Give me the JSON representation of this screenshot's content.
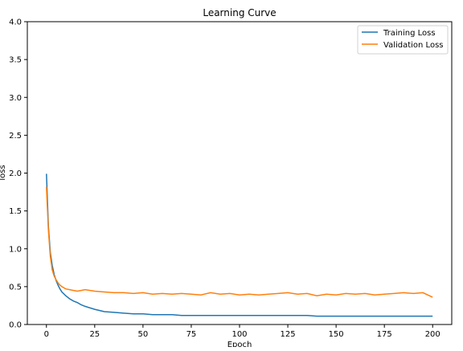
{
  "chart_data": {
    "type": "line",
    "title": "Learning Curve",
    "xlabel": "Epoch",
    "ylabel": "loss",
    "xlim": [
      0,
      200
    ],
    "ylim": [
      0.0,
      4.0
    ],
    "xticks": [
      0,
      25,
      50,
      75,
      100,
      125,
      150,
      175,
      200
    ],
    "yticks": [
      0.0,
      0.5,
      1.0,
      1.5,
      2.0,
      2.5,
      3.0,
      3.5,
      4.0
    ],
    "grid": false,
    "legend_position": "top-right",
    "x": [
      0,
      1,
      2,
      3,
      4,
      5,
      6,
      7,
      8,
      10,
      12,
      14,
      16,
      18,
      20,
      25,
      30,
      35,
      40,
      45,
      50,
      55,
      60,
      65,
      70,
      75,
      80,
      85,
      90,
      95,
      100,
      105,
      110,
      115,
      120,
      125,
      130,
      135,
      140,
      145,
      150,
      155,
      160,
      165,
      170,
      175,
      180,
      185,
      190,
      195,
      200
    ],
    "series": [
      {
        "name": "Training Loss",
        "color": "#1f77b4",
        "values": [
          1.99,
          1.3,
          0.95,
          0.78,
          0.66,
          0.58,
          0.52,
          0.47,
          0.43,
          0.38,
          0.34,
          0.31,
          0.29,
          0.26,
          0.24,
          0.2,
          0.17,
          0.16,
          0.15,
          0.14,
          0.14,
          0.13,
          0.13,
          0.13,
          0.12,
          0.12,
          0.12,
          0.12,
          0.12,
          0.12,
          0.12,
          0.12,
          0.12,
          0.12,
          0.12,
          0.12,
          0.12,
          0.12,
          0.11,
          0.11,
          0.11,
          0.11,
          0.11,
          0.11,
          0.11,
          0.11,
          0.11,
          0.11,
          0.11,
          0.11,
          0.11
        ]
      },
      {
        "name": "Validation Loss",
        "color": "#ff7f0e",
        "values": [
          1.82,
          1.25,
          0.9,
          0.72,
          0.64,
          0.59,
          0.55,
          0.52,
          0.5,
          0.47,
          0.46,
          0.45,
          0.44,
          0.45,
          0.46,
          0.44,
          0.43,
          0.42,
          0.42,
          0.41,
          0.42,
          0.4,
          0.41,
          0.4,
          0.41,
          0.4,
          0.39,
          0.42,
          0.4,
          0.41,
          0.39,
          0.4,
          0.39,
          0.4,
          0.41,
          0.42,
          0.4,
          0.41,
          0.38,
          0.4,
          0.39,
          0.41,
          0.4,
          0.41,
          0.39,
          0.4,
          0.41,
          0.42,
          0.41,
          0.42,
          0.36
        ]
      }
    ]
  }
}
